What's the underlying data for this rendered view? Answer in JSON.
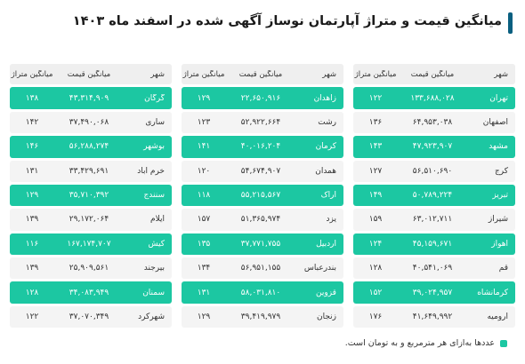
{
  "title": "میانگین قیمت و متراژ آپارتمان نوساز آگهی شده در اسفند ماه ۱۴۰۳",
  "colors": {
    "accent": "#1cc7a2",
    "title_bar": "#0a5f80"
  },
  "headers": {
    "city": "شهر",
    "price": "میانگین قیمت",
    "area": "میانگین متراژ"
  },
  "columns": [
    {
      "rows": [
        {
          "city": "تهران",
          "price": "۱۳۳,۶۸۸,۰۲۸",
          "area": "۱۲۲",
          "highlight": true
        },
        {
          "city": "اصفهان",
          "price": "۶۴,۹۵۳,۰۳۸",
          "area": "۱۳۶",
          "highlight": false
        },
        {
          "city": "مشهد",
          "price": "۴۷,۹۲۳,۹۰۷",
          "area": "۱۴۳",
          "highlight": true
        },
        {
          "city": "کرج",
          "price": "۵۶,۵۱۰,۶۹۰",
          "area": "۱۲۷",
          "highlight": false
        },
        {
          "city": "تبریز",
          "price": "۵۰,۷۸۹,۲۲۴",
          "area": "۱۴۹",
          "highlight": true
        },
        {
          "city": "شیراز",
          "price": "۶۳,۰۱۲,۷۱۱",
          "area": "۱۵۹",
          "highlight": false
        },
        {
          "city": "اهواز",
          "price": "۴۵,۱۵۹,۶۷۱",
          "area": "۱۲۴",
          "highlight": true
        },
        {
          "city": "قم",
          "price": "۴۰,۵۴۱,۰۶۹",
          "area": "۱۲۸",
          "highlight": false
        },
        {
          "city": "کرمانشاه",
          "price": "۳۹,۰۲۴,۹۵۷",
          "area": "۱۵۲",
          "highlight": true
        },
        {
          "city": "ارومیه",
          "price": "۴۱,۶۴۹,۹۹۲",
          "area": "۱۷۶",
          "highlight": false
        }
      ]
    },
    {
      "rows": [
        {
          "city": "زاهدان",
          "price": "۲۲,۶۵۰,۹۱۶",
          "area": "۱۲۹",
          "highlight": true
        },
        {
          "city": "رشت",
          "price": "۵۲,۹۲۲,۶۶۴",
          "area": "۱۲۳",
          "highlight": false
        },
        {
          "city": "کرمان",
          "price": "۴۰,۰۱۶,۲۰۴",
          "area": "۱۴۱",
          "highlight": true
        },
        {
          "city": "همدان",
          "price": "۵۴,۶۷۴,۹۰۷",
          "area": "۱۲۰",
          "highlight": false
        },
        {
          "city": "اراک",
          "price": "۵۵,۲۱۵,۵۶۷",
          "area": "۱۱۸",
          "highlight": true
        },
        {
          "city": "یزد",
          "price": "۵۱,۳۶۵,۹۷۴",
          "area": "۱۵۷",
          "highlight": false
        },
        {
          "city": "اردبیل",
          "price": "۳۷,۷۷۱,۷۵۵",
          "area": "۱۳۵",
          "highlight": true
        },
        {
          "city": "بندرعباس",
          "price": "۵۶,۹۵۱,۱۵۵",
          "area": "۱۳۴",
          "highlight": false
        },
        {
          "city": "قزوین",
          "price": "۵۸,۰۳۱,۸۱۰",
          "area": "۱۳۱",
          "highlight": true
        },
        {
          "city": "زنجان",
          "price": "۳۹,۴۱۹,۹۷۹",
          "area": "۱۲۹",
          "highlight": false
        }
      ]
    },
    {
      "rows": [
        {
          "city": "گرگان",
          "price": "۴۳,۳۱۴,۹۰۹",
          "area": "۱۳۸",
          "highlight": true
        },
        {
          "city": "ساری",
          "price": "۳۷,۴۹۰,۰۶۸",
          "area": "۱۴۲",
          "highlight": false
        },
        {
          "city": "بوشهر",
          "price": "۵۶,۲۸۸,۲۷۴",
          "area": "۱۴۶",
          "highlight": true
        },
        {
          "city": "خرم آباد",
          "price": "۳۳,۴۲۹,۶۹۱",
          "area": "۱۳۱",
          "highlight": false
        },
        {
          "city": "سنندج",
          "price": "۳۵,۷۱۰,۳۹۲",
          "area": "۱۲۹",
          "highlight": true
        },
        {
          "city": "ایلام",
          "price": "۲۹,۱۷۲,۰۶۴",
          "area": "۱۳۹",
          "highlight": false
        },
        {
          "city": "کیش",
          "price": "۱۶۷,۱۷۴,۷۰۷",
          "area": "۱۱۶",
          "highlight": true
        },
        {
          "city": "بیرجند",
          "price": "۲۵,۹۰۹,۵۶۱",
          "area": "۱۳۹",
          "highlight": false
        },
        {
          "city": "سمنان",
          "price": "۳۴,۰۸۳,۹۴۹",
          "area": "۱۲۸",
          "highlight": true
        },
        {
          "city": "شهرکرد",
          "price": "۳۷,۰۷۰,۳۴۹",
          "area": "۱۲۲",
          "highlight": false
        }
      ]
    }
  ],
  "footnote": "عددها به‌ازای هر مترمربع و به تومان است."
}
